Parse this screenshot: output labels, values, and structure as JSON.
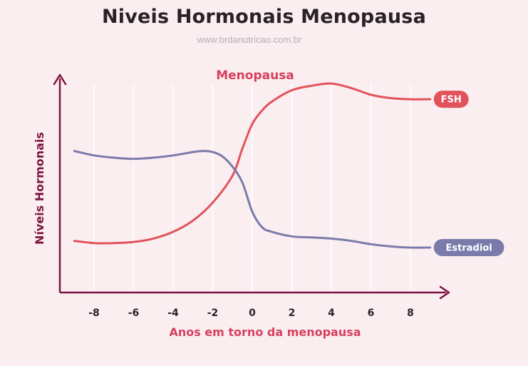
{
  "title": "Niveis Hormonais Menopausa",
  "source_url": "www.brdanutricao.com.br",
  "chart_data": {
    "type": "line",
    "title": "Menopausa",
    "xlabel": "Anos em torno da menopausa",
    "ylabel": "Níveis Hormonais",
    "x_ticks": [
      -8,
      -6,
      -4,
      -2,
      0,
      2,
      4,
      6,
      8
    ],
    "xlim": [
      -9.2,
      9.2
    ],
    "ylim": [
      0,
      100
    ],
    "grid": true,
    "series": [
      {
        "name": "FSH",
        "color": "#e2525b",
        "x": [
          -9,
          -8,
          -7,
          -6,
          -5,
          -4,
          -3,
          -2,
          -1,
          -0.5,
          0,
          0.5,
          1,
          2,
          3,
          4,
          5,
          6,
          7,
          8,
          9
        ],
        "y": [
          23,
          22,
          22,
          22.5,
          24,
          27,
          32,
          40,
          52,
          64,
          75,
          81,
          85,
          90,
          92,
          93,
          91,
          88,
          86.5,
          86,
          86
        ]
      },
      {
        "name": "Estradiol",
        "color": "#7a7bab",
        "x": [
          -9,
          -8,
          -7,
          -6,
          -5,
          -4,
          -3,
          -2.5,
          -2,
          -1.5,
          -1,
          -0.5,
          0,
          0.5,
          1,
          2,
          3,
          4,
          5,
          6,
          7,
          8,
          9
        ],
        "y": [
          63,
          61,
          60,
          59.5,
          60,
          61,
          62.5,
          63,
          62.5,
          60.5,
          56,
          49,
          36,
          29,
          27,
          25,
          24.5,
          24,
          23,
          21.5,
          20.5,
          20,
          20
        ]
      }
    ]
  }
}
